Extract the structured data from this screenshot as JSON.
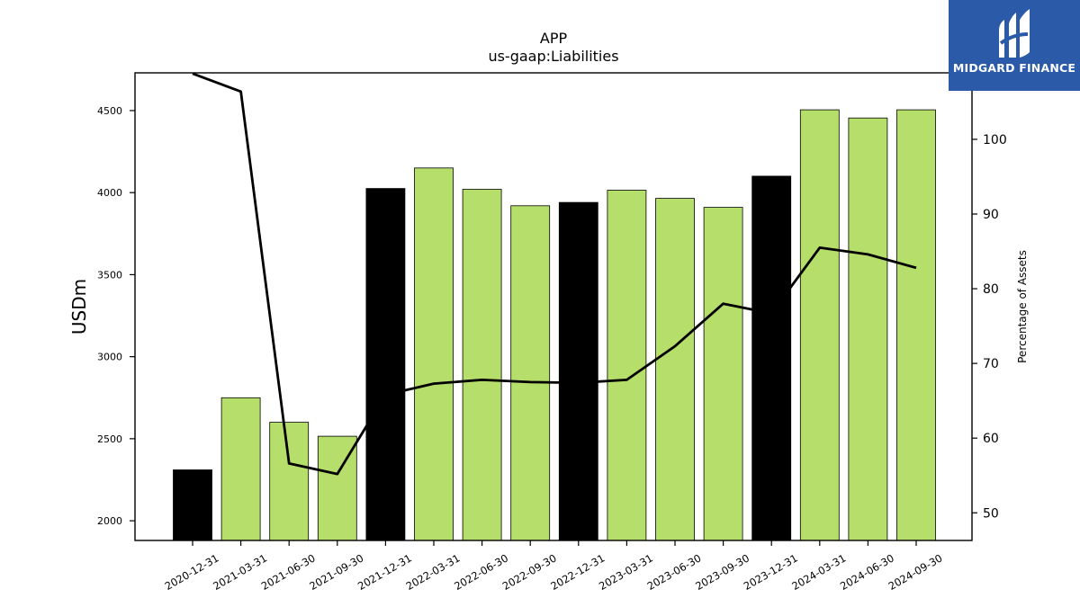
{
  "chart_data": {
    "type": "bar+line",
    "title": "APP",
    "subtitle": "us-gaap:Liabilities",
    "ylabel": "USDm",
    "y2label": "Percentage of Assets",
    "ylim": [
      1880,
      4730
    ],
    "y2lim": [
      46.3,
      108.9
    ],
    "yticks": [
      2000,
      2500,
      3000,
      3500,
      4000,
      4500
    ],
    "y2ticks": [
      50,
      60,
      70,
      80,
      90,
      100
    ],
    "categories": [
      "2020-12-31",
      "2021-03-31",
      "2021-06-30",
      "2021-09-30",
      "2021-12-31",
      "2022-03-31",
      "2022-06-30",
      "2022-09-30",
      "2022-12-31",
      "2023-03-31",
      "2023-06-30",
      "2023-09-30",
      "2023-12-31",
      "2024-03-31",
      "2024-06-30",
      "2024-09-30"
    ],
    "bar_values": [
      2310,
      2750,
      2600,
      2515,
      4025,
      4150,
      4020,
      3920,
      3940,
      4015,
      3965,
      3910,
      4100,
      4505,
      4455,
      4505
    ],
    "bar_is_annual": [
      true,
      false,
      false,
      false,
      true,
      false,
      false,
      false,
      true,
      false,
      false,
      false,
      true,
      false,
      false,
      false
    ],
    "line_values": [
      108.8,
      106.4,
      56.6,
      55.2,
      65.8,
      67.3,
      67.8,
      67.5,
      67.4,
      67.8,
      72.3,
      78.0,
      76.7,
      85.5,
      84.6,
      82.8
    ],
    "colors": {
      "annual_bar": "#000000",
      "quarterly_bar": "#b5de6a",
      "bar_edge": "#000000",
      "line": "#000000"
    }
  },
  "logo": {
    "text": "MIDGARD FINANCE",
    "background": "#2a5aa8"
  }
}
